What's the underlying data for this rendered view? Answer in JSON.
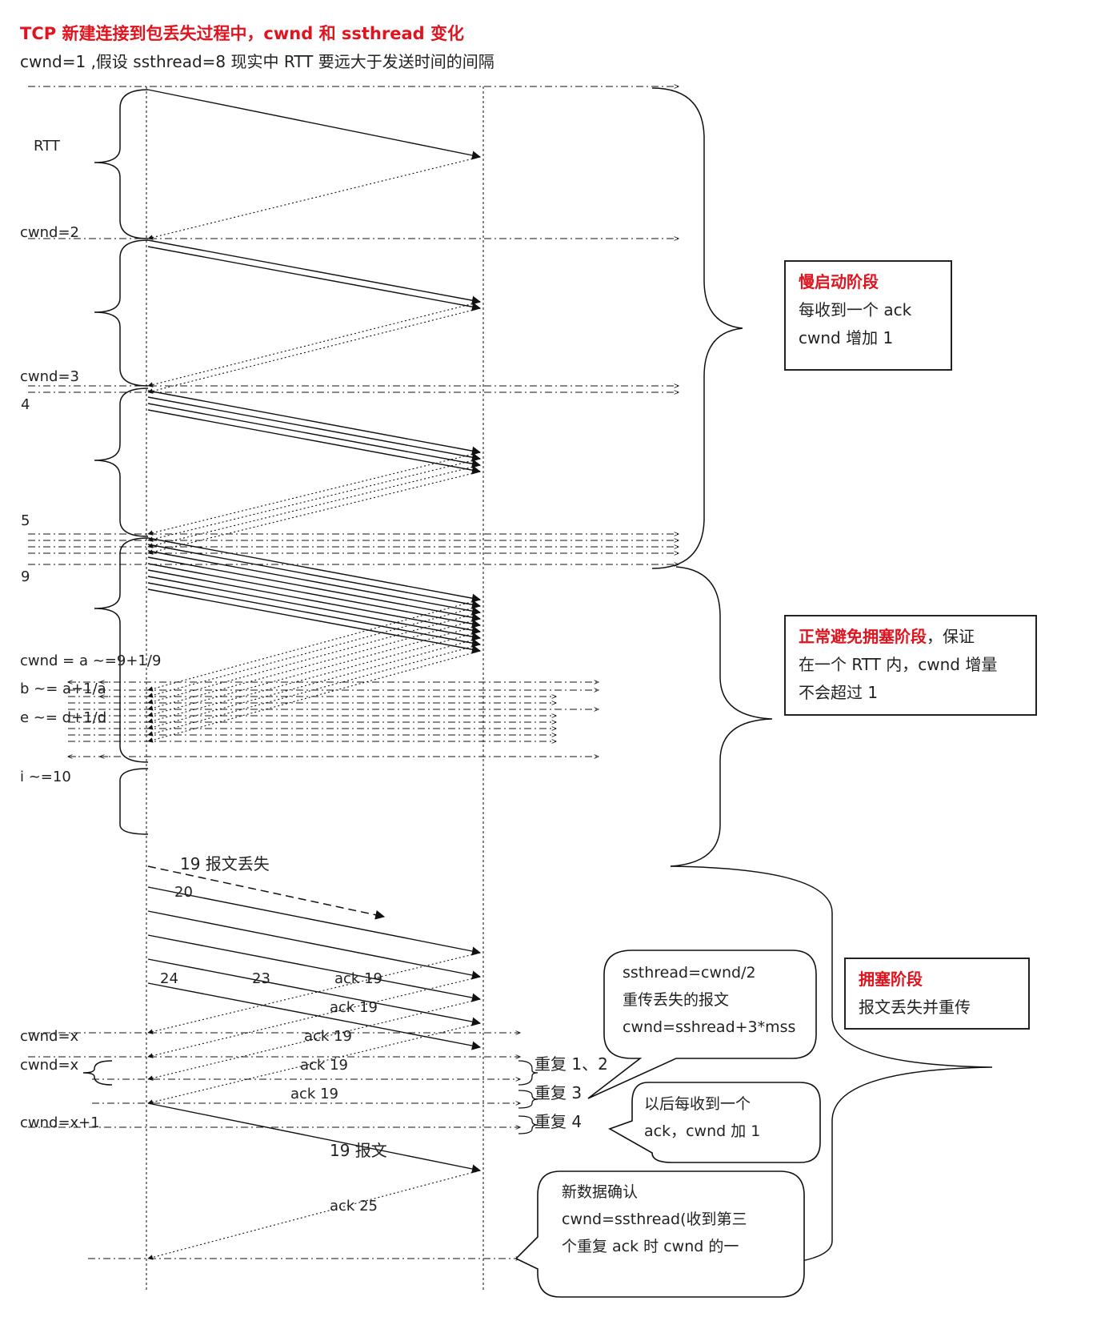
{
  "header": {
    "title": "TCP 新建连接到包丢失过程中，cwnd 和 ssthread 变化",
    "subtitle": "cwnd=1 ,假设 ssthread=8   现实中 RTT 要远大于发送时间的间隔"
  },
  "labels": {
    "rtt": "RTT",
    "cwnd2": "cwnd=2",
    "cwnd3": "cwnd=3",
    "n4": "4",
    "n5": "5",
    "n9": "9",
    "cwnd_a": "cwnd = a ~=9+1/9",
    "b": "b ~= a+1/a",
    "e": "e ~= d+1/d",
    "i": "i ~=10",
    "loss19": "19 报文丢失",
    "p20": "20",
    "p24": "24",
    "p23": "23",
    "ack19_1": "ack 19",
    "ack19_2": "ack 19",
    "ack19_3": "ack 19",
    "ack19_4": "ack 19",
    "ack19_5": "ack 19",
    "cwndx1": "cwnd=x",
    "cwndx2": "cwnd=x",
    "cwndx3": "cwnd=x+1",
    "dup12": "重复 1、2",
    "dup3": "重复 3",
    "dup4": "重复 4",
    "resend19": "19 报文",
    "ack25": "ack 25"
  },
  "boxes": {
    "slow_start": {
      "title": "慢启动阶段",
      "line1": "每收到一个 ack",
      "line2": "cwnd 增加 1"
    },
    "avoid": {
      "title": "正常避免拥塞阶段",
      "title_suffix": "，保证",
      "line1": "在一个 RTT 内，cwnd 增量",
      "line2": "不会超过 1"
    },
    "congest": {
      "title": "拥塞阶段",
      "line1": "报文丢失并重传"
    }
  },
  "callouts": {
    "c1": {
      "line1": "ssthread=cwnd/2",
      "line2": "重传丢失的报文",
      "line3": "cwnd=sshread+3*mss"
    },
    "c2": {
      "line1": "以后每收到一个",
      "line2": "ack，cwnd 加 1"
    },
    "c3": {
      "line1": "新数据确认",
      "line2": "cwnd=ssthread(收到第三",
      "line3": "个重复 ack 时 cwnd 的一"
    }
  }
}
